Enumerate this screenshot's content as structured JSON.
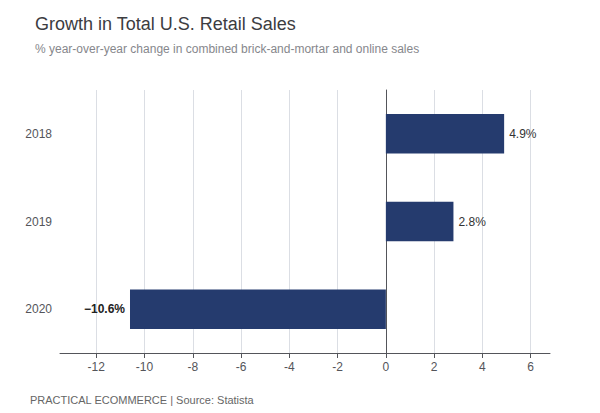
{
  "chart_data": {
    "type": "bar",
    "orientation": "horizontal",
    "title": "Growth in Total U.S. Retail Sales",
    "subtitle": "% year-over-year change in combined brick-and-mortar and online sales",
    "source": "PRACTICAL ECOMMERCE | Source: Statista",
    "categories": [
      "2020",
      "2019",
      "2018"
    ],
    "values": [
      -10.6,
      2.8,
      4.9
    ],
    "value_labels": [
      "−10.6%",
      "2.8%",
      "4.9%"
    ],
    "data_labels": true,
    "color": "#253b6e",
    "xlim": [
      -13.5,
      6.8
    ],
    "xticks": [
      -12,
      -10,
      -8,
      -6,
      -4,
      -2,
      0,
      2,
      4,
      6
    ],
    "grid": true
  }
}
